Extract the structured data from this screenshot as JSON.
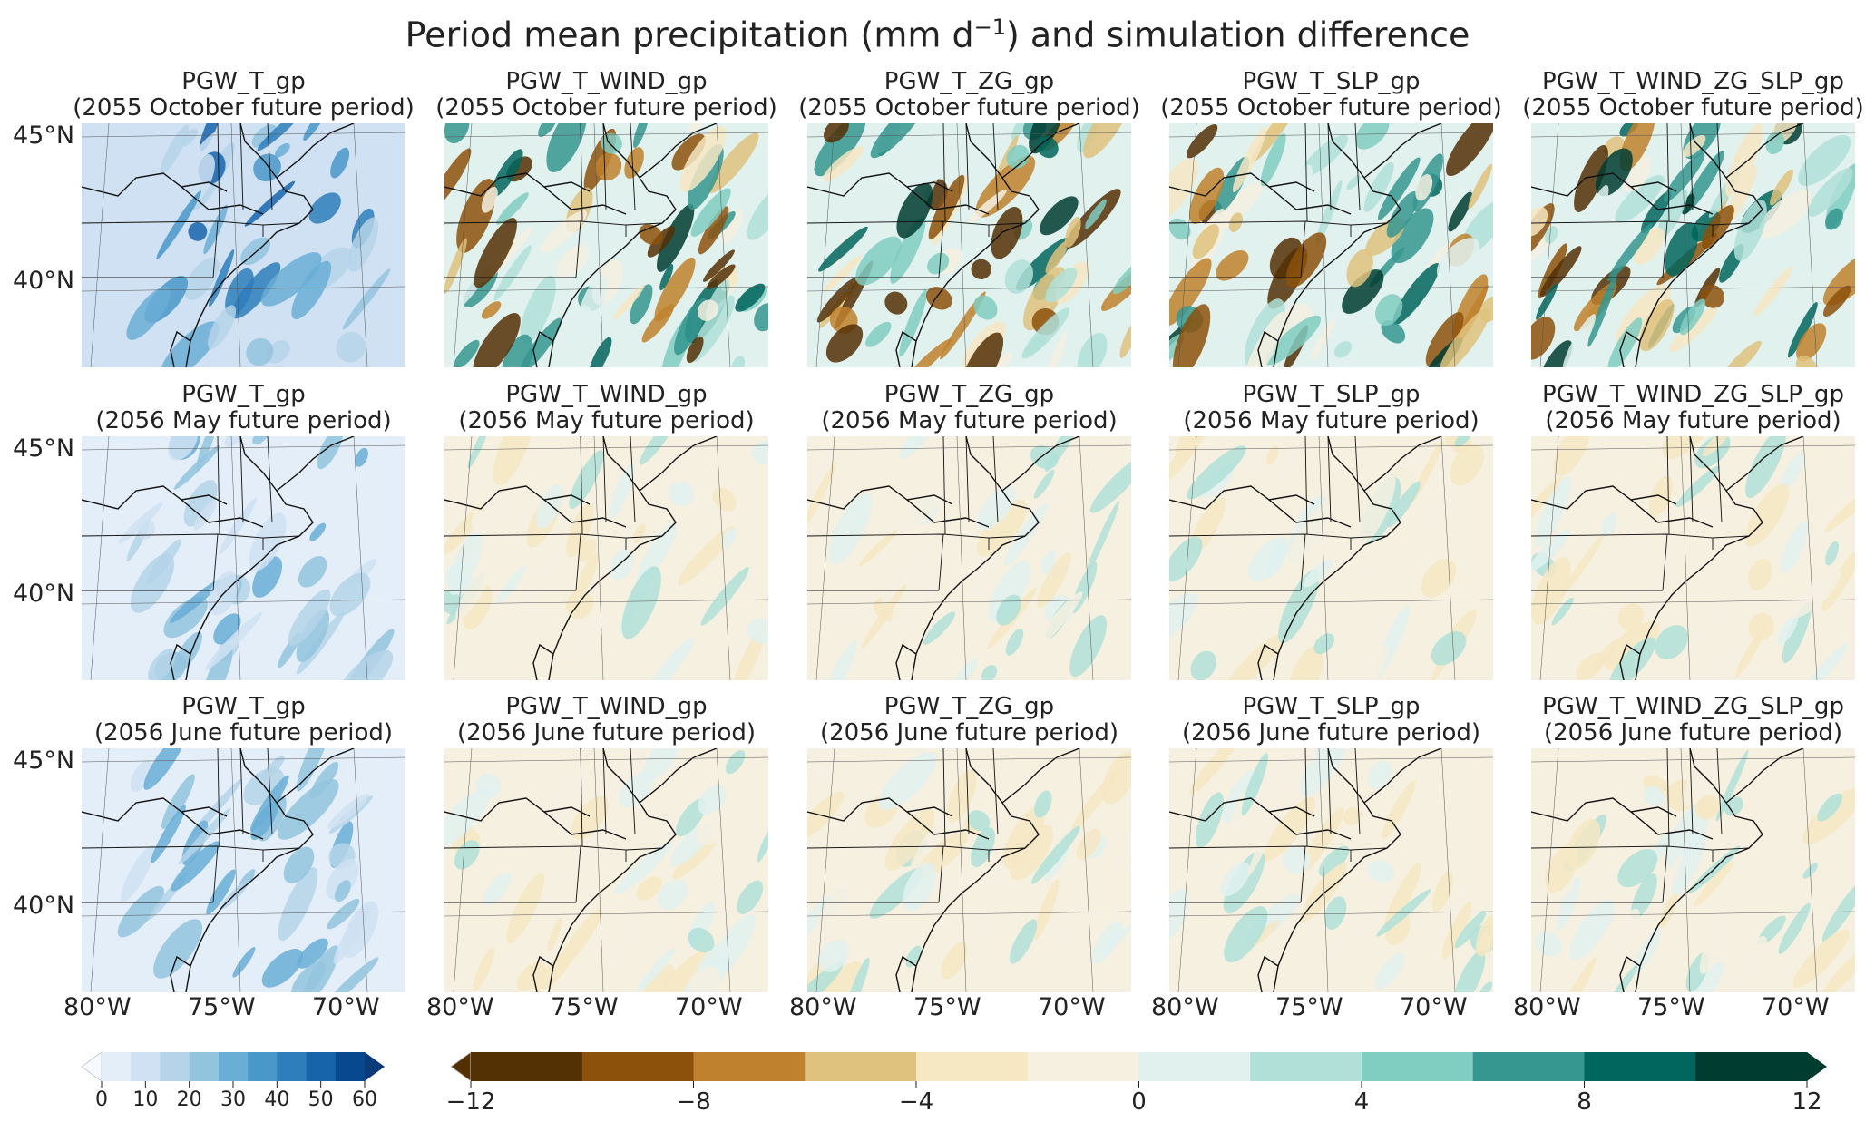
{
  "chart_data": {
    "type": "heatmap",
    "title": "Period mean precipitation (mm d⁻¹) and simulation difference",
    "title_main": "Period mean precipitation (mm d",
    "title_sup": "−1",
    "title_end": ") and simulation difference",
    "rows": [
      {
        "period": "(2055 October future period)",
        "panels": [
          "PGW_T_gp",
          "PGW_T_WIND_gp",
          "PGW_T_ZG_gp",
          "PGW_T_SLP_gp",
          "PGW_T_WIND_ZG_SLP_gp"
        ]
      },
      {
        "period": "(2056 May future period)",
        "panels": [
          "PGW_T_gp",
          "PGW_T_WIND_gp",
          "PGW_T_ZG_gp",
          "PGW_T_SLP_gp",
          "PGW_T_WIND_ZG_SLP_gp"
        ]
      },
      {
        "period": "(2056 June future period)",
        "panels": [
          "PGW_T_gp",
          "PGW_T_WIND_gp",
          "PGW_T_ZG_gp",
          "PGW_T_SLP_gp",
          "PGW_T_WIND_ZG_SLP_gp"
        ]
      }
    ],
    "lat_ticks": [
      "45°N",
      "40°N"
    ],
    "lon_ticks": [
      "80°W",
      "75°W",
      "70°W"
    ],
    "colorbar_precip": {
      "range": [
        0,
        60
      ],
      "ticks": [
        "0",
        "10",
        "20",
        "30",
        "40",
        "50",
        "60"
      ],
      "colormap": "Blues",
      "extend": "both",
      "colors": [
        "#f7fbff",
        "#e3eef9",
        "#cfe1f2",
        "#b5d4e9",
        "#93c4de",
        "#6aaed6",
        "#4a98c9",
        "#2e7ebc",
        "#1764ab",
        "#08488e",
        "#0b3a7a"
      ]
    },
    "colorbar_diff": {
      "range": [
        -12,
        12
      ],
      "ticks": [
        "−12",
        "−8",
        "−4",
        "0",
        "4",
        "8",
        "12"
      ],
      "colormap": "BrBG",
      "extend": "both",
      "colors": [
        "#543005",
        "#8c510a",
        "#bf812d",
        "#dfc27d",
        "#f6e8c3",
        "#f5f0e0",
        "#e0f1ee",
        "#b0e0d8",
        "#80cdc1",
        "#35978f",
        "#01665e",
        "#003c30"
      ]
    }
  }
}
